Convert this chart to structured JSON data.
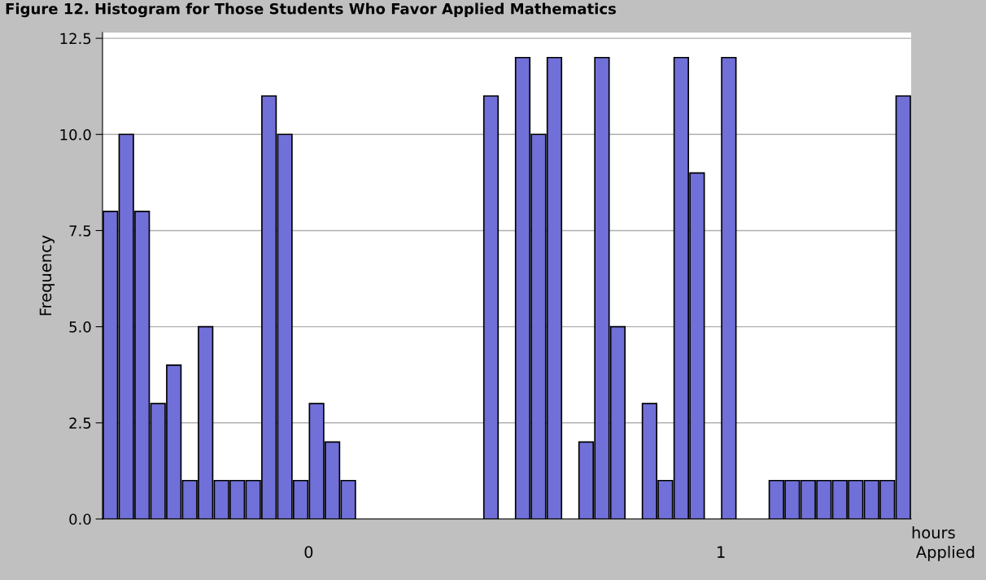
{
  "chart_data": {
    "type": "bar",
    "title": "Figure 12. Histogram for Those Students Who Favor Applied Mathematics",
    "ylabel": "Frequency",
    "xlabel": "hours",
    "annotations": [
      "0",
      "1",
      "Applied"
    ],
    "categories": [
      null,
      null,
      null,
      null,
      null,
      null,
      null,
      null,
      null,
      null,
      null,
      null,
      null,
      null,
      null,
      null,
      null,
      null,
      null,
      null,
      null,
      null,
      null,
      null,
      null,
      null,
      null,
      null,
      null,
      null,
      null,
      null,
      null,
      null,
      null,
      null,
      null,
      null,
      null,
      null,
      null,
      null,
      null,
      null,
      null,
      null,
      null,
      null,
      null,
      null,
      null
    ],
    "values": [
      8,
      10,
      8,
      3,
      4,
      1,
      5,
      1,
      1,
      1,
      11,
      10,
      1,
      3,
      2,
      1,
      null,
      null,
      null,
      null,
      null,
      null,
      null,
      null,
      11,
      null,
      12,
      10,
      12,
      null,
      2,
      12,
      5,
      null,
      3,
      1,
      12,
      9,
      null,
      12,
      null,
      null,
      1,
      1,
      1,
      1,
      1,
      1,
      1,
      1,
      11
    ],
    "color": "#7070d8",
    "ylim": [
      0,
      12.65
    ],
    "yticks": [
      {
        "value": 0,
        "label": "0.0"
      },
      {
        "value": 2.5,
        "label": "2.5"
      },
      {
        "value": 5,
        "label": "5.0"
      },
      {
        "value": 7.5,
        "label": "7.5"
      },
      {
        "value": 10,
        "label": "10.0"
      },
      {
        "value": 12.5,
        "label": "12.5"
      }
    ],
    "grid": "y"
  }
}
